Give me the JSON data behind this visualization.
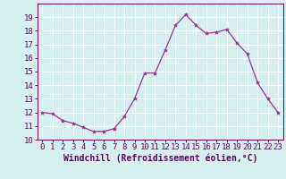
{
  "x": [
    0,
    1,
    2,
    3,
    4,
    5,
    6,
    7,
    8,
    9,
    10,
    11,
    12,
    13,
    14,
    15,
    16,
    17,
    18,
    19,
    20,
    21,
    22,
    23
  ],
  "y": [
    12.0,
    11.9,
    11.4,
    11.2,
    10.9,
    10.6,
    10.6,
    10.8,
    11.7,
    13.0,
    14.9,
    14.9,
    16.6,
    18.4,
    19.2,
    18.4,
    17.8,
    17.9,
    18.1,
    17.1,
    16.3,
    14.2,
    13.0,
    12.0
  ],
  "line_color": "#993399",
  "marker": "*",
  "marker_size": 3,
  "bg_color": "#d6f0f0",
  "grid_color": "#ffffff",
  "xlabel": "Windchill (Refroidissement éolien,°C)",
  "xlabel_color": "#660066",
  "xlabel_fontsize": 7,
  "tick_color": "#660066",
  "tick_fontsize": 6.5,
  "ylim": [
    10,
    20
  ],
  "xlim": [
    -0.5,
    23.5
  ],
  "yticks": [
    10,
    11,
    12,
    13,
    14,
    15,
    16,
    17,
    18,
    19
  ],
  "xticks": [
    0,
    1,
    2,
    3,
    4,
    5,
    6,
    7,
    8,
    9,
    10,
    11,
    12,
    13,
    14,
    15,
    16,
    17,
    18,
    19,
    20,
    21,
    22,
    23
  ]
}
